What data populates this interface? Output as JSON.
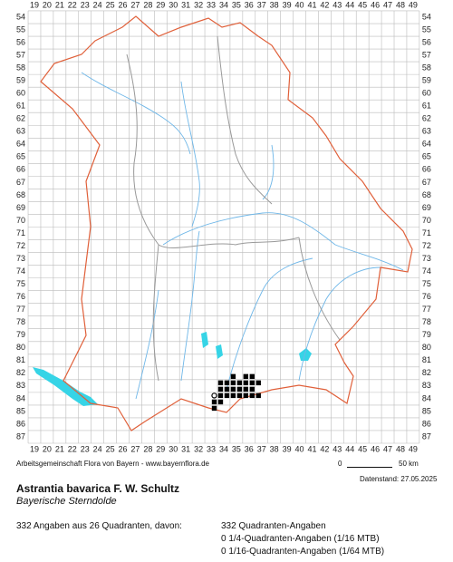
{
  "map": {
    "columns": [
      "19",
      "20",
      "21",
      "22",
      "23",
      "24",
      "25",
      "26",
      "27",
      "28",
      "29",
      "30",
      "31",
      "32",
      "33",
      "34",
      "35",
      "36",
      "37",
      "38",
      "39",
      "40",
      "41",
      "42",
      "43",
      "44",
      "45",
      "46",
      "47",
      "48",
      "49"
    ],
    "rows": [
      "54",
      "55",
      "56",
      "57",
      "58",
      "59",
      "60",
      "61",
      "62",
      "63",
      "64",
      "65",
      "66",
      "67",
      "68",
      "69",
      "70",
      "71",
      "72",
      "73",
      "74",
      "75",
      "76",
      "77",
      "78",
      "79",
      "80",
      "81",
      "82",
      "83",
      "84",
      "85",
      "86",
      "87"
    ],
    "occurrences": [
      [
        35,
        82.5
      ],
      [
        36,
        82.5
      ],
      [
        36.5,
        82.5
      ],
      [
        34,
        83
      ],
      [
        34.5,
        83
      ],
      [
        35,
        83
      ],
      [
        35.5,
        83
      ],
      [
        36,
        83
      ],
      [
        36.5,
        83
      ],
      [
        37,
        83
      ],
      [
        34,
        83.5
      ],
      [
        34.5,
        83.5
      ],
      [
        35,
        83.5
      ],
      [
        35.5,
        83.5
      ],
      [
        36,
        83.5
      ],
      [
        36.5,
        83.5
      ],
      [
        34,
        84
      ],
      [
        34.5,
        84
      ],
      [
        35,
        84
      ],
      [
        35.5,
        84
      ],
      [
        36,
        84
      ],
      [
        36.5,
        84
      ],
      [
        37,
        84
      ],
      [
        33.5,
        84.5
      ],
      [
        34,
        84.5
      ],
      [
        33.5,
        85
      ]
    ],
    "open_circles": [
      [
        33.5,
        84
      ]
    ]
  },
  "footer": {
    "source": "Arbeitsgemeinschaft Flora von Bayern - www.bayernflora.de",
    "scale_start": "0",
    "scale_end": "50 km",
    "date": "Datenstand: 27.05.2025"
  },
  "species": {
    "name": "Astrantia bavarica F. W. Schultz",
    "common_name": "Bayerische Sterndolde"
  },
  "stats": {
    "summary": "332 Angaben aus 26 Quadranten, davon:",
    "quadrant": "332 Quadranten-Angaben",
    "quarter": "0 1/4-Quadranten-Angaben (1/16 MTB)",
    "sixteenth": "0 1/16-Quadranten-Angaben (1/64 MTB)"
  }
}
